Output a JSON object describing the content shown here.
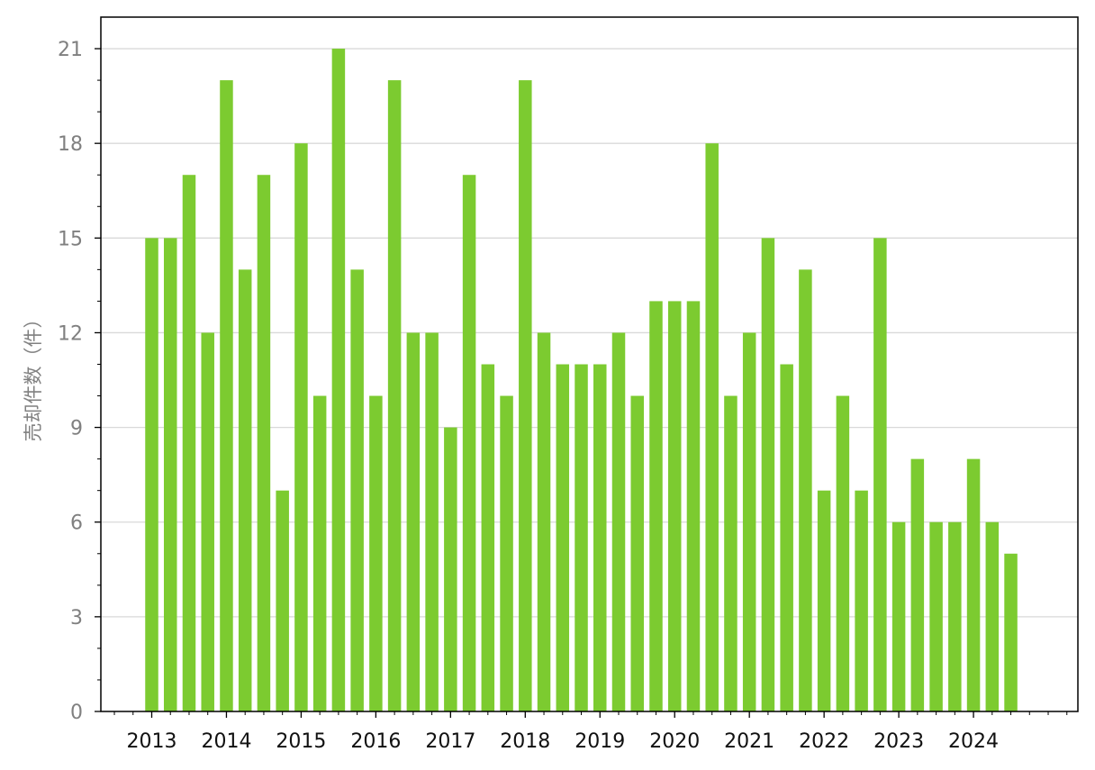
{
  "chart_data": {
    "type": "bar",
    "ylabel": "売却件数（件）",
    "ylim": [
      0,
      22
    ],
    "yticks": [
      0,
      3,
      6,
      9,
      12,
      15,
      18,
      21
    ],
    "x_tick_labels": [
      "2013",
      "2014",
      "2015",
      "2016",
      "2017",
      "2018",
      "2019",
      "2020",
      "2021",
      "2022",
      "2023",
      "2024"
    ],
    "grid": "horizontal",
    "bar_color": "#7ccb30",
    "categories": [
      "2013Q1",
      "2013Q2",
      "2013Q3",
      "2013Q4",
      "2014Q1",
      "2014Q2",
      "2014Q3",
      "2014Q4",
      "2015Q1",
      "2015Q2",
      "2015Q3",
      "2015Q4",
      "2016Q1",
      "2016Q2",
      "2016Q3",
      "2016Q4",
      "2017Q1",
      "2017Q2",
      "2017Q3",
      "2017Q4",
      "2018Q1",
      "2018Q2",
      "2018Q3",
      "2018Q4",
      "2019Q1",
      "2019Q2",
      "2019Q3",
      "2019Q4",
      "2020Q1",
      "2020Q2",
      "2020Q3",
      "2020Q4",
      "2021Q1",
      "2021Q2",
      "2021Q3",
      "2021Q4",
      "2022Q1",
      "2022Q2",
      "2022Q3",
      "2022Q4",
      "2023Q1",
      "2023Q2",
      "2023Q3",
      "2023Q4",
      "2024Q1",
      "2024Q2",
      "2024Q3"
    ],
    "values": [
      15,
      15,
      17,
      12,
      20,
      14,
      17,
      7,
      18,
      10,
      21,
      14,
      10,
      20,
      12,
      12,
      9,
      17,
      11,
      10,
      20,
      12,
      11,
      11,
      11,
      12,
      10,
      13,
      13,
      13,
      18,
      10,
      12,
      15,
      11,
      14,
      7,
      10,
      7,
      15,
      6,
      8,
      6,
      6,
      8,
      6,
      5
    ]
  }
}
